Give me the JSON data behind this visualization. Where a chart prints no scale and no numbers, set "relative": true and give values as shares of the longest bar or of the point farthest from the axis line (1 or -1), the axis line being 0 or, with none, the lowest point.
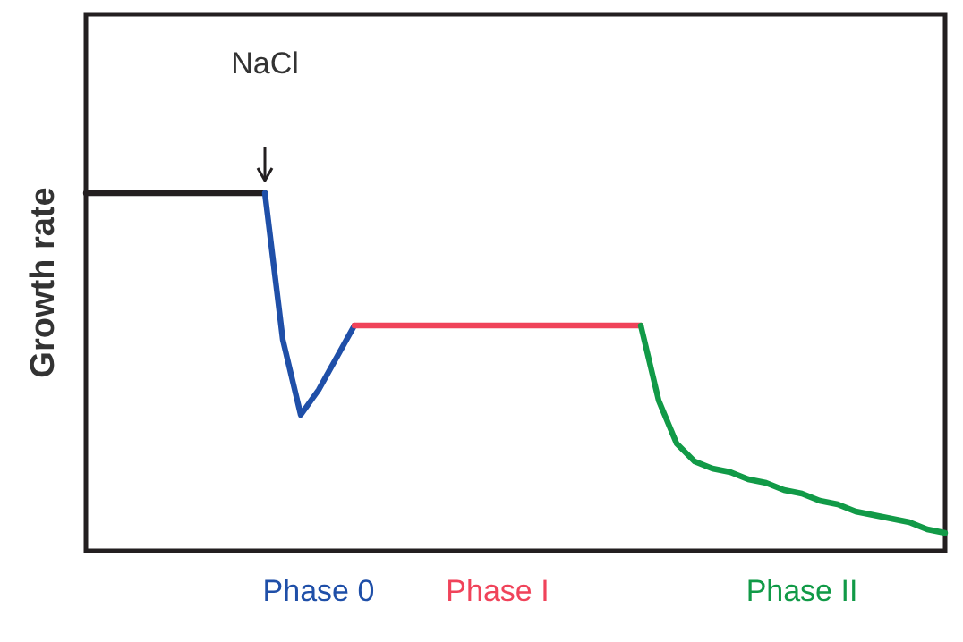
{
  "chart_data": {
    "type": "line",
    "relative": true,
    "ylabel": "Growth rate",
    "annotations": [
      "NaCl"
    ],
    "legend": false,
    "grid": false,
    "marker": "none",
    "line_style": "solid",
    "categories": [
      null,
      null,
      null,
      null,
      null,
      null,
      null,
      null,
      null,
      null,
      null,
      null,
      null,
      null,
      null,
      null,
      null,
      null,
      null,
      null,
      null,
      null,
      null,
      null,
      null,
      null,
      null,
      null,
      null,
      null,
      null,
      null,
      null,
      null,
      null,
      null,
      null,
      null,
      null,
      null,
      null,
      null,
      null,
      null,
      null,
      null,
      null,
      null,
      null
    ],
    "series": [
      {
        "color": "#231f20",
        "values": [
          1,
          1,
          1,
          1,
          1,
          1,
          1,
          1,
          1,
          1,
          1,
          null,
          null,
          null,
          null,
          null,
          null,
          null,
          null,
          null,
          null,
          null,
          null,
          null,
          null,
          null,
          null,
          null,
          null,
          null,
          null,
          null,
          null,
          null,
          null,
          null,
          null,
          null,
          null,
          null,
          null,
          null,
          null,
          null,
          null,
          null,
          null,
          null,
          null
        ]
      },
      {
        "name": "Phase 0",
        "color": "#1f4fa8",
        "values": [
          null,
          null,
          null,
          null,
          null,
          null,
          null,
          null,
          null,
          null,
          1,
          0.59,
          0.38,
          0.45,
          0.54,
          0.63,
          null,
          null,
          null,
          null,
          null,
          null,
          null,
          null,
          null,
          null,
          null,
          null,
          null,
          null,
          null,
          null,
          null,
          null,
          null,
          null,
          null,
          null,
          null,
          null,
          null,
          null,
          null,
          null,
          null,
          null,
          null,
          null,
          null
        ]
      },
      {
        "name": "Phase I",
        "color": "#f0435a",
        "values": [
          null,
          null,
          null,
          null,
          null,
          null,
          null,
          null,
          null,
          null,
          null,
          null,
          null,
          null,
          null,
          0.63,
          0.63,
          0.63,
          0.63,
          0.63,
          0.63,
          0.63,
          0.63,
          0.63,
          0.63,
          0.63,
          0.63,
          0.63,
          0.63,
          0.63,
          0.63,
          0.63,
          null,
          null,
          null,
          null,
          null,
          null,
          null,
          null,
          null,
          null,
          null,
          null,
          null,
          null,
          null,
          null,
          null
        ]
      },
      {
        "name": "Phase II",
        "color": "#119a47",
        "values": [
          null,
          null,
          null,
          null,
          null,
          null,
          null,
          null,
          null,
          null,
          null,
          null,
          null,
          null,
          null,
          null,
          null,
          null,
          null,
          null,
          null,
          null,
          null,
          null,
          null,
          null,
          null,
          null,
          null,
          null,
          null,
          0.63,
          0.42,
          0.3,
          0.25,
          0.23,
          0.22,
          0.2,
          0.19,
          0.17,
          0.16,
          0.14,
          0.13,
          0.11,
          0.1,
          0.09,
          0.08,
          0.06,
          0.05
        ]
      }
    ]
  }
}
